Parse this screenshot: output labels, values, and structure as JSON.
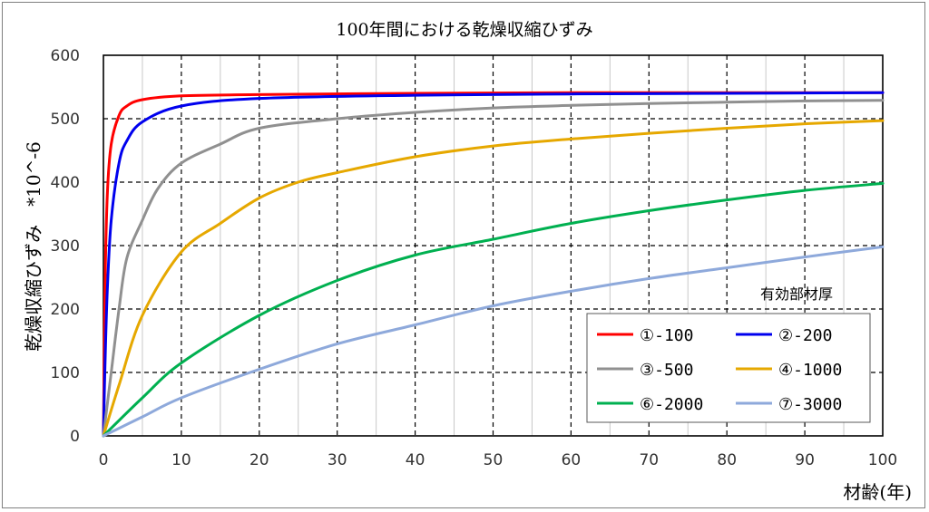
{
  "chart_data": {
    "type": "line",
    "title": "100年間における乾燥収縮ひずみ",
    "xlabel": "材齢(年)",
    "ylabel": "乾燥収縮ひずみ　*10^-6",
    "xlim": [
      0,
      100
    ],
    "ylim": [
      0,
      600
    ],
    "xticks": [
      "0",
      "10",
      "20",
      "30",
      "40",
      "50",
      "60",
      "70",
      "80",
      "90",
      "100"
    ],
    "yticks": [
      "0",
      "100",
      "200",
      "300",
      "400",
      "500",
      "600"
    ],
    "legend_title": "有効部材厚",
    "series": [
      {
        "name": "①-100",
        "color": "#ff0000",
        "x": [
          0,
          0.2,
          0.5,
          1,
          2,
          3,
          5,
          10,
          20,
          40,
          60,
          80,
          100
        ],
        "values": [
          0,
          230,
          380,
          460,
          505,
          520,
          530,
          536,
          538,
          540,
          541,
          541,
          541
        ]
      },
      {
        "name": "②-200",
        "color": "#0000ee",
        "x": [
          0,
          0.2,
          0.5,
          1,
          2,
          3,
          5,
          10,
          20,
          40,
          60,
          80,
          100
        ],
        "values": [
          0,
          110,
          230,
          340,
          430,
          465,
          495,
          520,
          532,
          537,
          539,
          540,
          541
        ]
      },
      {
        "name": "③-500",
        "color": "#909090",
        "x": [
          0,
          1,
          2,
          3,
          5,
          7,
          10,
          15,
          20,
          30,
          40,
          50,
          60,
          70,
          80,
          90,
          100
        ],
        "values": [
          0,
          100,
          200,
          280,
          340,
          390,
          430,
          460,
          485,
          500,
          510,
          517,
          521,
          524,
          526,
          528,
          529
        ]
      },
      {
        "name": "④-1000",
        "color": "#e6a800",
        "x": [
          0,
          2,
          5,
          10,
          15,
          20,
          25,
          30,
          40,
          50,
          60,
          70,
          80,
          90,
          100
        ],
        "values": [
          0,
          80,
          190,
          290,
          335,
          375,
          400,
          415,
          440,
          457,
          468,
          477,
          485,
          492,
          497
        ]
      },
      {
        "name": "⑥-2000",
        "color": "#00b050",
        "x": [
          0,
          5,
          10,
          20,
          30,
          40,
          50,
          60,
          70,
          80,
          90,
          100
        ],
        "values": [
          0,
          60,
          115,
          190,
          245,
          285,
          310,
          335,
          355,
          372,
          387,
          398
        ]
      },
      {
        "name": "⑦-3000",
        "color": "#8ea9db",
        "x": [
          0,
          5,
          10,
          20,
          30,
          40,
          50,
          60,
          70,
          80,
          90,
          100
        ],
        "values": [
          0,
          30,
          60,
          105,
          145,
          175,
          205,
          228,
          248,
          265,
          282,
          298
        ]
      }
    ]
  }
}
